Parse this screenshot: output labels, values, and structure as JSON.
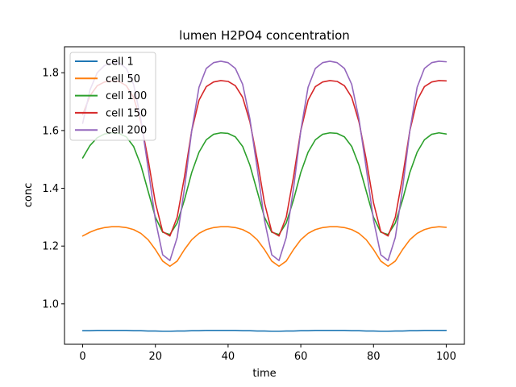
{
  "chart_data": {
    "type": "line",
    "title": "lumen H2PO4 concentration",
    "xlabel": "time",
    "ylabel": "conc",
    "xlim": [
      -5,
      105
    ],
    "ylim": [
      0.86,
      1.89
    ],
    "xticks": [
      0,
      20,
      40,
      60,
      80,
      100
    ],
    "yticks": [
      1.0,
      1.2,
      1.4,
      1.6,
      1.8
    ],
    "xtick_labels": [
      "0",
      "20",
      "40",
      "60",
      "80",
      "100"
    ],
    "ytick_labels": [
      "1.0",
      "1.2",
      "1.4",
      "1.6",
      "1.8"
    ],
    "grid": false,
    "legend_position": "top-left",
    "x": [
      0,
      2,
      4,
      6,
      8,
      10,
      12,
      14,
      16,
      18,
      20,
      22,
      24,
      26,
      28,
      30,
      32,
      34,
      36,
      38,
      40,
      42,
      44,
      46,
      48,
      50,
      52,
      54,
      56,
      58,
      60,
      62,
      64,
      66,
      68,
      70,
      72,
      74,
      76,
      78,
      80,
      82,
      84,
      86,
      88,
      90,
      92,
      94,
      96,
      98,
      100
    ],
    "series": [
      {
        "name": "cell 1",
        "color": "#1f77b4",
        "values": [
          0.907,
          0.907,
          0.908,
          0.908,
          0.908,
          0.908,
          0.908,
          0.907,
          0.907,
          0.906,
          0.906,
          0.905,
          0.905,
          0.906,
          0.906,
          0.907,
          0.907,
          0.908,
          0.908,
          0.908,
          0.908,
          0.908,
          0.907,
          0.907,
          0.906,
          0.906,
          0.905,
          0.905,
          0.906,
          0.906,
          0.907,
          0.907,
          0.908,
          0.908,
          0.908,
          0.908,
          0.908,
          0.907,
          0.907,
          0.906,
          0.906,
          0.905,
          0.905,
          0.906,
          0.906,
          0.907,
          0.907,
          0.908,
          0.908,
          0.908,
          0.908
        ]
      },
      {
        "name": "cell 50",
        "color": "#ff7f0e",
        "values": [
          1.235,
          1.248,
          1.258,
          1.264,
          1.267,
          1.267,
          1.264,
          1.257,
          1.244,
          1.222,
          1.188,
          1.148,
          1.13,
          1.148,
          1.188,
          1.222,
          1.244,
          1.257,
          1.264,
          1.267,
          1.267,
          1.264,
          1.257,
          1.244,
          1.222,
          1.188,
          1.148,
          1.13,
          1.148,
          1.188,
          1.222,
          1.244,
          1.257,
          1.264,
          1.267,
          1.267,
          1.264,
          1.257,
          1.244,
          1.222,
          1.188,
          1.148,
          1.13,
          1.148,
          1.188,
          1.222,
          1.244,
          1.257,
          1.264,
          1.267,
          1.265
        ]
      },
      {
        "name": "cell 100",
        "color": "#2ca02c",
        "values": [
          1.505,
          1.548,
          1.575,
          1.588,
          1.592,
          1.59,
          1.578,
          1.545,
          1.48,
          1.39,
          1.3,
          1.248,
          1.24,
          1.28,
          1.36,
          1.455,
          1.525,
          1.568,
          1.587,
          1.592,
          1.59,
          1.578,
          1.545,
          1.48,
          1.39,
          1.3,
          1.248,
          1.24,
          1.28,
          1.36,
          1.455,
          1.525,
          1.568,
          1.587,
          1.592,
          1.59,
          1.578,
          1.545,
          1.48,
          1.39,
          1.3,
          1.248,
          1.24,
          1.28,
          1.36,
          1.455,
          1.525,
          1.568,
          1.587,
          1.592,
          1.588
        ]
      },
      {
        "name": "cell 150",
        "color": "#d62728",
        "values": [
          1.655,
          1.72,
          1.755,
          1.768,
          1.772,
          1.77,
          1.755,
          1.715,
          1.63,
          1.5,
          1.35,
          1.25,
          1.235,
          1.3,
          1.44,
          1.6,
          1.705,
          1.752,
          1.768,
          1.773,
          1.77,
          1.755,
          1.715,
          1.63,
          1.5,
          1.35,
          1.25,
          1.235,
          1.3,
          1.44,
          1.6,
          1.705,
          1.752,
          1.768,
          1.773,
          1.77,
          1.755,
          1.715,
          1.63,
          1.5,
          1.35,
          1.25,
          1.235,
          1.3,
          1.44,
          1.6,
          1.705,
          1.752,
          1.768,
          1.773,
          1.772
        ]
      },
      {
        "name": "cell 200",
        "color": "#9467bd",
        "values": [
          1.625,
          1.74,
          1.8,
          1.825,
          1.835,
          1.835,
          1.815,
          1.76,
          1.64,
          1.47,
          1.29,
          1.17,
          1.15,
          1.23,
          1.4,
          1.6,
          1.75,
          1.815,
          1.835,
          1.84,
          1.835,
          1.815,
          1.76,
          1.64,
          1.47,
          1.29,
          1.17,
          1.15,
          1.23,
          1.4,
          1.6,
          1.75,
          1.815,
          1.835,
          1.84,
          1.835,
          1.815,
          1.76,
          1.64,
          1.47,
          1.29,
          1.17,
          1.15,
          1.23,
          1.4,
          1.6,
          1.75,
          1.815,
          1.835,
          1.84,
          1.838
        ]
      }
    ]
  }
}
